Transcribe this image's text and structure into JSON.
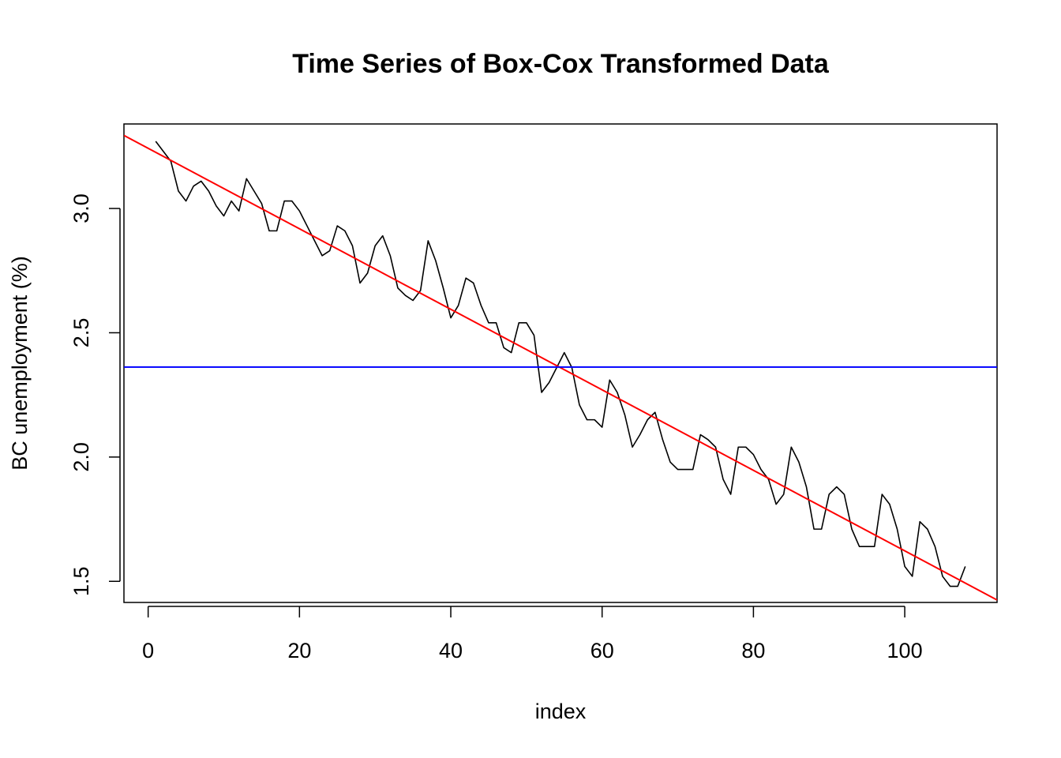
{
  "chart_data": {
    "type": "line",
    "title": "Time Series of Box-Cox Transformed Data",
    "xlabel": "index",
    "ylabel": "BC unemployment (%)",
    "xlim": [
      -3.2,
      112.2
    ],
    "ylim": [
      1.415,
      3.34
    ],
    "xticks": [
      0,
      20,
      40,
      60,
      80,
      100
    ],
    "yticks": [
      1.5,
      2.0,
      2.5,
      3.0
    ],
    "ytick_labels": [
      "1.5",
      "2.0",
      "2.5",
      "3.0"
    ],
    "grid": false,
    "legend": "none",
    "series": [
      {
        "color": "#000000",
        "x": [
          1,
          2,
          3,
          4,
          5,
          6,
          7,
          8,
          9,
          10,
          11,
          12,
          13,
          14,
          15,
          16,
          17,
          18,
          19,
          20,
          21,
          22,
          23,
          24,
          25,
          26,
          27,
          28,
          29,
          30,
          31,
          32,
          33,
          34,
          35,
          36,
          37,
          38,
          39,
          40,
          41,
          42,
          43,
          44,
          45,
          46,
          47,
          48,
          49,
          50,
          51,
          52,
          53,
          54,
          55,
          56,
          57,
          58,
          59,
          60,
          61,
          62,
          63,
          64,
          65,
          66,
          67,
          68,
          69,
          70,
          71,
          72,
          73,
          74,
          75,
          76,
          77,
          78,
          79,
          80,
          81,
          82,
          83,
          84,
          85,
          86,
          87,
          88,
          89,
          90,
          91,
          92,
          93,
          94,
          95,
          96,
          97,
          98,
          99,
          100,
          101,
          102,
          103,
          104,
          105,
          106,
          107,
          108
        ],
        "values": [
          3.27,
          3.23,
          3.19,
          3.07,
          3.03,
          3.09,
          3.11,
          3.07,
          3.01,
          2.97,
          3.03,
          2.99,
          3.12,
          3.07,
          3.02,
          2.91,
          2.91,
          3.03,
          3.03,
          2.99,
          2.93,
          2.87,
          2.81,
          2.83,
          2.93,
          2.91,
          2.85,
          2.7,
          2.74,
          2.85,
          2.89,
          2.81,
          2.68,
          2.65,
          2.63,
          2.67,
          2.87,
          2.79,
          2.68,
          2.56,
          2.61,
          2.72,
          2.7,
          2.61,
          2.54,
          2.54,
          2.44,
          2.42,
          2.54,
          2.54,
          2.49,
          2.26,
          2.3,
          2.36,
          2.42,
          2.36,
          2.21,
          2.15,
          2.15,
          2.12,
          2.31,
          2.26,
          2.17,
          2.04,
          2.09,
          2.15,
          2.18,
          2.07,
          1.98,
          1.95,
          1.95,
          1.95,
          2.09,
          2.07,
          2.04,
          1.91,
          1.85,
          2.04,
          2.04,
          2.01,
          1.95,
          1.91,
          1.81,
          1.85,
          2.04,
          1.98,
          1.88,
          1.71,
          1.71,
          1.85,
          1.88,
          1.85,
          1.71,
          1.64,
          1.64,
          1.64,
          1.85,
          1.81,
          1.71,
          1.56,
          1.52,
          1.74,
          1.71,
          1.64,
          1.52,
          1.48,
          1.48,
          1.56
        ]
      },
      {
        "color": "#ff0000",
        "x": [
          -3.2,
          112.2
        ],
        "values": [
          3.294,
          1.425
        ]
      },
      {
        "color": "#0000ff",
        "x": [
          -3.2,
          112.2
        ],
        "values": [
          2.362,
          2.362
        ]
      }
    ]
  }
}
